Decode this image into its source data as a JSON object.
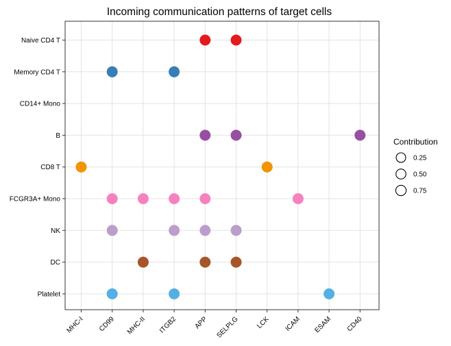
{
  "chart_data": {
    "type": "scatter",
    "title": "Incoming communication patterns of target cells",
    "x_categories": [
      "MHC-I",
      "CD99",
      "MHC-II",
      "ITGB2",
      "APP",
      "SELPLG",
      "LCK",
      "ICAM",
      "ESAM",
      "CD40"
    ],
    "y_categories": [
      "Naive CD4 T",
      "Memory CD4 T",
      "CD14+ Mono",
      "B",
      "CD8 T",
      "FCGR3A+ Mono",
      "NK",
      "DC",
      "Platelet"
    ],
    "grid": true,
    "legend": {
      "title": "Contribution",
      "position": "right",
      "values": [
        0.25,
        0.5,
        0.75
      ],
      "labels": [
        "0.25",
        "0.50",
        "0.75"
      ]
    },
    "points": [
      {
        "x": "APP",
        "y": "Naive CD4 T",
        "color": "#E41A1C"
      },
      {
        "x": "SELPLG",
        "y": "Naive CD4 T",
        "color": "#E41A1C"
      },
      {
        "x": "CD99",
        "y": "Memory CD4 T",
        "color": "#377EB8"
      },
      {
        "x": "ITGB2",
        "y": "Memory CD4 T",
        "color": "#377EB8"
      },
      {
        "x": "APP",
        "y": "B",
        "color": "#984EA3"
      },
      {
        "x": "SELPLG",
        "y": "B",
        "color": "#984EA3"
      },
      {
        "x": "CD40",
        "y": "B",
        "color": "#984EA3"
      },
      {
        "x": "MHC-I",
        "y": "CD8 T",
        "color": "#F29403"
      },
      {
        "x": "LCK",
        "y": "CD8 T",
        "color": "#F29403"
      },
      {
        "x": "CD99",
        "y": "FCGR3A+ Mono",
        "color": "#F781BF"
      },
      {
        "x": "MHC-II",
        "y": "FCGR3A+ Mono",
        "color": "#F781BF"
      },
      {
        "x": "ITGB2",
        "y": "FCGR3A+ Mono",
        "color": "#F781BF"
      },
      {
        "x": "APP",
        "y": "FCGR3A+ Mono",
        "color": "#F781BF"
      },
      {
        "x": "ICAM",
        "y": "FCGR3A+ Mono",
        "color": "#F781BF"
      },
      {
        "x": "CD99",
        "y": "NK",
        "color": "#BC9DCC"
      },
      {
        "x": "ITGB2",
        "y": "NK",
        "color": "#BC9DCC"
      },
      {
        "x": "APP",
        "y": "NK",
        "color": "#BC9DCC"
      },
      {
        "x": "SELPLG",
        "y": "NK",
        "color": "#BC9DCC"
      },
      {
        "x": "MHC-II",
        "y": "DC",
        "color": "#A65628"
      },
      {
        "x": "APP",
        "y": "DC",
        "color": "#A65628"
      },
      {
        "x": "SELPLG",
        "y": "DC",
        "color": "#A65628"
      },
      {
        "x": "CD99",
        "y": "Platelet",
        "color": "#54B0E4"
      },
      {
        "x": "ITGB2",
        "y": "Platelet",
        "color": "#54B0E4"
      },
      {
        "x": "ESAM",
        "y": "Platelet",
        "color": "#54B0E4"
      }
    ]
  }
}
